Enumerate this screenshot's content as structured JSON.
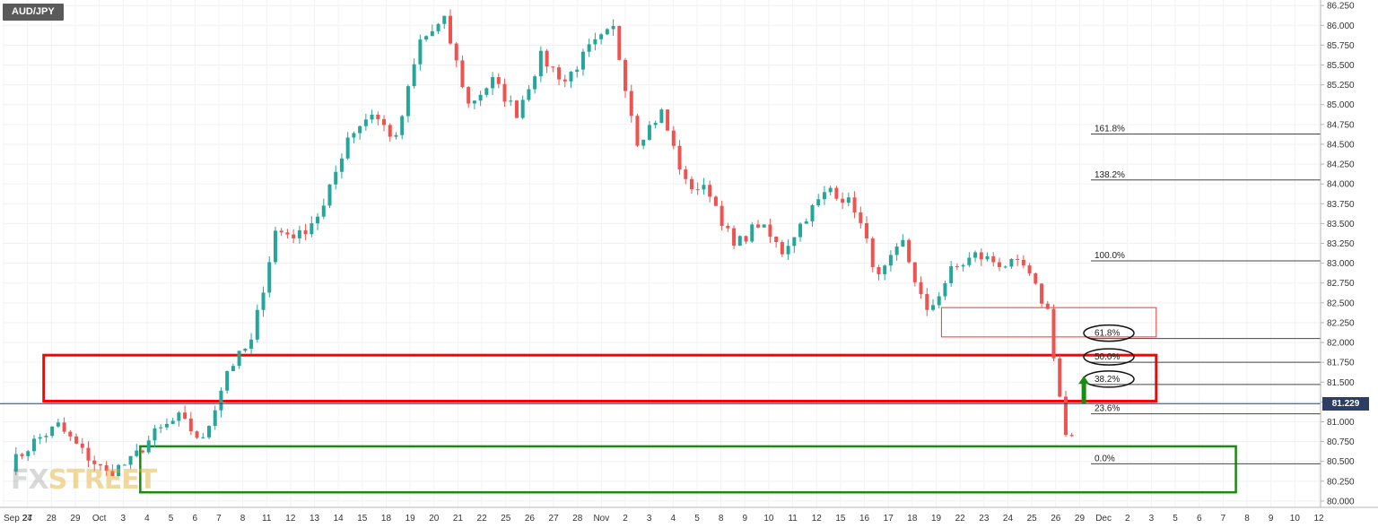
{
  "symbol": "AUD/JPY",
  "watermark": {
    "left": "FX",
    "right": "STREET"
  },
  "current_price": "81.229",
  "colors": {
    "up": "#26a69a",
    "down": "#ef5350",
    "red_zone": "#ff0000",
    "green_zone": "#1a8a10",
    "arrow": "#1a8a10",
    "price_tag": "#2c3e63"
  },
  "chart_data": {
    "type": "candlestick",
    "title": "",
    "ylim": [
      79.92,
      86.32
    ],
    "y_ticks": [
      "86.250",
      "86.000",
      "85.750",
      "85.500",
      "85.250",
      "85.000",
      "84.750",
      "84.500",
      "84.250",
      "84.000",
      "83.750",
      "83.500",
      "83.250",
      "83.000",
      "82.750",
      "82.500",
      "82.250",
      "82.000",
      "81.750",
      "81.500",
      "81.250",
      "81.000",
      "80.750",
      "80.500",
      "80.250",
      "80.000"
    ],
    "x_ticks": [
      "Sep 24",
      "27",
      "28",
      "29",
      "Oct",
      "3",
      "4",
      "5",
      "6",
      "7",
      "8",
      "11",
      "12",
      "13",
      "14",
      "15",
      "18",
      "19",
      "20",
      "21",
      "22",
      "25",
      "26",
      "27",
      "28",
      "Nov",
      "2",
      "3",
      "4",
      "5",
      "8",
      "9",
      "10",
      "11",
      "12",
      "15",
      "16",
      "17",
      "18",
      "19",
      "22",
      "23",
      "24",
      "25",
      "26",
      "29",
      "Dec",
      "2",
      "3",
      "5",
      "6",
      "7",
      "8",
      "9",
      "10",
      "12"
    ],
    "anchors": [
      {
        "day": 0,
        "price": 80.45
      },
      {
        "day": 1,
        "price": 80.75
      },
      {
        "day": 2,
        "price": 80.95
      },
      {
        "day": 3,
        "price": 80.62
      },
      {
        "day": 4,
        "price": 80.35
      },
      {
        "day": 5,
        "price": 80.5
      },
      {
        "day": 6,
        "price": 80.85
      },
      {
        "day": 7,
        "price": 81.05
      },
      {
        "day": 8,
        "price": 80.75
      },
      {
        "day": 9,
        "price": 81.65
      },
      {
        "day": 10,
        "price": 82.0
      },
      {
        "day": 11,
        "price": 83.4
      },
      {
        "day": 12,
        "price": 83.35
      },
      {
        "day": 13,
        "price": 83.7
      },
      {
        "day": 14,
        "price": 84.6
      },
      {
        "day": 15,
        "price": 84.9
      },
      {
        "day": 16,
        "price": 84.55
      },
      {
        "day": 17,
        "price": 85.8
      },
      {
        "day": 18,
        "price": 86.05
      },
      {
        "day": 19,
        "price": 85.0
      },
      {
        "day": 20,
        "price": 85.3
      },
      {
        "day": 21,
        "price": 84.9
      },
      {
        "day": 22,
        "price": 85.6
      },
      {
        "day": 23,
        "price": 85.3
      },
      {
        "day": 24,
        "price": 85.7
      },
      {
        "day": 25,
        "price": 85.95
      },
      {
        "day": 26,
        "price": 84.55
      },
      {
        "day": 27,
        "price": 84.9
      },
      {
        "day": 28,
        "price": 84.0
      },
      {
        "day": 29,
        "price": 83.9
      },
      {
        "day": 30,
        "price": 83.2
      },
      {
        "day": 31,
        "price": 83.5
      },
      {
        "day": 32,
        "price": 83.15
      },
      {
        "day": 33,
        "price": 83.6
      },
      {
        "day": 34,
        "price": 83.95
      },
      {
        "day": 35,
        "price": 83.7
      },
      {
        "day": 36,
        "price": 82.8
      },
      {
        "day": 37,
        "price": 83.25
      },
      {
        "day": 38,
        "price": 82.35
      },
      {
        "day": 39,
        "price": 82.9
      },
      {
        "day": 40,
        "price": 83.1
      },
      {
        "day": 41,
        "price": 83.0
      },
      {
        "day": 42,
        "price": 82.95
      },
      {
        "day": 43,
        "price": 82.4
      },
      {
        "day": 43.6,
        "price": 81.1
      },
      {
        "day": 43.9,
        "price": 80.55
      },
      {
        "day": 44.2,
        "price": 81.23
      }
    ],
    "fib_levels": [
      {
        "label": "161.8%",
        "value": 84.63
      },
      {
        "label": "138.2%",
        "value": 84.05
      },
      {
        "label": "100.0%",
        "value": 83.03
      },
      {
        "label": "61.8%",
        "value": 82.05,
        "circled": true
      },
      {
        "label": "50.0%",
        "value": 81.75,
        "circled": true
      },
      {
        "label": "38.2%",
        "value": 81.47,
        "circled": true
      },
      {
        "label": "23.6%",
        "value": 81.1
      },
      {
        "label": "0.0%",
        "value": 80.47
      }
    ],
    "zones": [
      {
        "color": "red",
        "day_from": 1.4,
        "day_to": 47.5,
        "price_top": 81.84,
        "price_bottom": 81.26
      },
      {
        "color": "red-thin",
        "day_from": 38.6,
        "day_to": 47.5,
        "price_top": 82.44,
        "price_bottom": 82.07
      },
      {
        "color": "green",
        "day_from": 5.4,
        "day_to": 50.8,
        "price_top": 80.69,
        "price_bottom": 80.11
      }
    ],
    "current_line": 81.229,
    "arrow": {
      "day": 44.5,
      "from": 81.23,
      "to": 81.58
    }
  }
}
